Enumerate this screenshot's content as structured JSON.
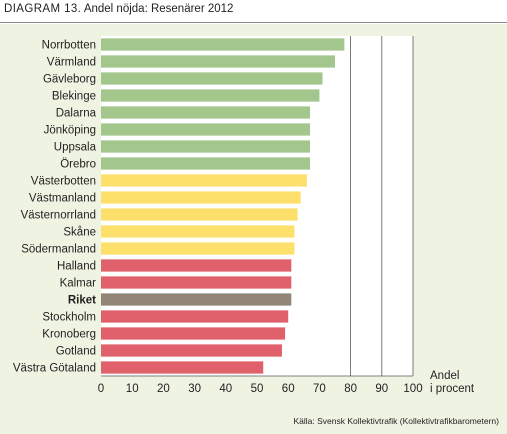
{
  "header": {
    "label": "DIAGRAM 13.",
    "title": "Andel nöjda: Resenärer 2012"
  },
  "source": "Källa: Svensk Kollektivtrafik (Kollektivtrafikbarometern)",
  "chart_data": {
    "type": "bar",
    "orientation": "horizontal",
    "title": "Andel nöjda: Resenärer 2012",
    "xlabel": "Andel\ni procent",
    "ylabel": "",
    "xlim": [
      0,
      100
    ],
    "xticks": [
      0,
      10,
      20,
      30,
      40,
      50,
      60,
      70,
      80,
      90,
      100
    ],
    "grid": "vertical lines at 80, 90, 100",
    "categories": [
      "Norrbotten",
      "Värmland",
      "Gävleborg",
      "Blekinge",
      "Dalarna",
      "Jönköping",
      "Uppsala",
      "Örebro",
      "Västerbotten",
      "Västmanland",
      "Västernorrland",
      "Skåne",
      "Södermanland",
      "Halland",
      "Kalmar",
      "Riket",
      "Stockholm",
      "Kronoberg",
      "Gotland",
      "Västra Götaland"
    ],
    "values": [
      78,
      75,
      71,
      70,
      67,
      67,
      67,
      67,
      66,
      64,
      63,
      62,
      62,
      61,
      61,
      61,
      60,
      59,
      58,
      52
    ],
    "groups": [
      "green",
      "green",
      "green",
      "green",
      "green",
      "green",
      "green",
      "green",
      "yellow",
      "yellow",
      "yellow",
      "yellow",
      "yellow",
      "red",
      "red",
      "gray",
      "red",
      "red",
      "red",
      "red"
    ],
    "bold_categories": [
      "Riket"
    ],
    "colors": {
      "green": "#a3c68c",
      "yellow": "#fde06c",
      "red": "#e0606b",
      "gray": "#928678",
      "plot_bg": "#ffffff",
      "panel_bg": "#eef3e2",
      "gridline": "#5a5a5a"
    }
  }
}
